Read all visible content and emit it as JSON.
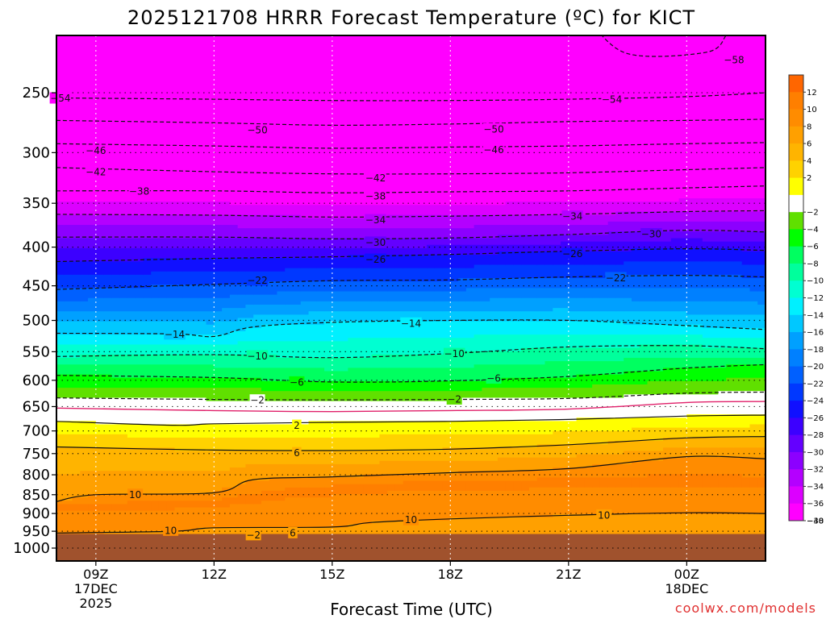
{
  "title": "2025121708 HRRR Forecast Temperature (ºC) for KICT",
  "credit": "coolwx.com/models",
  "chart_data": {
    "type": "heatmap",
    "title": "2025121708 HRRR Forecast Temperature (ºC) for KICT",
    "xlabel": "Forecast Time (UTC)",
    "ylabel": "",
    "xlim": [
      8,
      26
    ],
    "ylim_hpa": [
      210,
      1040
    ],
    "y_log_scale": true,
    "grid": true,
    "x_ticks": [
      {
        "hour": 9,
        "label": "09Z",
        "line2": "17DEC",
        "line3": "2025"
      },
      {
        "hour": 12,
        "label": "12Z"
      },
      {
        "hour": 15,
        "label": "15Z"
      },
      {
        "hour": 18,
        "label": "18Z"
      },
      {
        "hour": 21,
        "label": "21Z"
      },
      {
        "hour": 24,
        "label": "00Z",
        "line2": "18DEC"
      }
    ],
    "y_ticks": [
      250,
      300,
      350,
      400,
      450,
      500,
      550,
      600,
      650,
      700,
      750,
      800,
      850,
      900,
      950,
      1000
    ],
    "surface_pressure_hpa": 958,
    "colorbar": {
      "ticks": [
        12,
        10,
        8,
        6,
        4,
        2,
        -2,
        -4,
        -6,
        -8,
        -10,
        -12,
        -14,
        -16,
        -18,
        -20,
        -22,
        -24,
        -26,
        -28,
        -30,
        -32,
        -34,
        -36,
        -38,
        -40
      ],
      "colors": [
        "#ff6600",
        "#ff7f00",
        "#ff8c00",
        "#ffa000",
        "#ffb400",
        "#ffd200",
        "#ffff00",
        "#ffffff",
        "#60e000",
        "#00ff00",
        "#00ff60",
        "#00ff9c",
        "#00ffd2",
        "#00f0ff",
        "#00c8ff",
        "#00a0ff",
        "#0080ff",
        "#0060ff",
        "#0038ff",
        "#1010ff",
        "#3c00ff",
        "#6400ff",
        "#8c00ff",
        "#b400ff",
        "#dc00ff",
        "#ff00ff"
      ]
    },
    "isotherms": [
      {
        "t": -58,
        "p": [
          [
            21.5,
            200
          ],
          [
            22.5,
            222
          ],
          [
            24.5,
            221
          ],
          [
            25.0,
            210
          ]
        ],
        "label_at": [
          25.2,
          226
        ]
      },
      {
        "t": -54,
        "p": [
          [
            8,
            254
          ],
          [
            12,
            255
          ],
          [
            15,
            256
          ],
          [
            18,
            256
          ],
          [
            21,
            255
          ],
          [
            24,
            253
          ],
          [
            26,
            250
          ]
        ],
        "labels": [
          [
            8.1,
            254
          ],
          [
            22.1,
            255
          ]
        ]
      },
      {
        "t": -50,
        "p": [
          [
            8,
            272
          ],
          [
            12,
            274
          ],
          [
            15,
            276
          ],
          [
            18,
            275
          ],
          [
            21,
            273
          ],
          [
            24,
            272
          ],
          [
            26,
            271
          ]
        ],
        "labels": [
          [
            13.1,
            280
          ],
          [
            19.1,
            279
          ]
        ]
      },
      {
        "t": -46,
        "p": [
          [
            8,
            292
          ],
          [
            12,
            294
          ],
          [
            15,
            296
          ],
          [
            18,
            295
          ],
          [
            21,
            294
          ],
          [
            24,
            292
          ],
          [
            26,
            291
          ]
        ],
        "labels": [
          [
            9.0,
            298
          ],
          [
            19.1,
            297
          ]
        ]
      },
      {
        "t": -42,
        "p": [
          [
            8,
            314
          ],
          [
            12,
            318
          ],
          [
            15,
            320
          ],
          [
            18,
            320
          ],
          [
            21,
            319
          ],
          [
            24,
            316
          ],
          [
            26,
            314
          ]
        ],
        "labels": [
          [
            9.0,
            318
          ],
          [
            16.1,
            324
          ]
        ]
      },
      {
        "t": -38,
        "p": [
          [
            8,
            337
          ],
          [
            12,
            337
          ],
          [
            15,
            339
          ],
          [
            18,
            338
          ],
          [
            21,
            337
          ],
          [
            24,
            334
          ],
          [
            26,
            332
          ]
        ],
        "labels": [
          [
            10.1,
            337
          ],
          [
            16.1,
            342
          ]
        ]
      },
      {
        "t": -34,
        "p": [
          [
            8,
            362
          ],
          [
            12,
            363
          ],
          [
            15,
            365
          ],
          [
            18,
            364
          ],
          [
            21,
            362
          ],
          [
            24,
            359
          ],
          [
            26,
            358
          ]
        ],
        "labels": [
          [
            16.1,
            368
          ],
          [
            21.1,
            364
          ]
        ]
      },
      {
        "t": -30,
        "p": [
          [
            8,
            388
          ],
          [
            12,
            388
          ],
          [
            15,
            390
          ],
          [
            18,
            389
          ],
          [
            21,
            385
          ],
          [
            24,
            380
          ],
          [
            26,
            382
          ]
        ],
        "labels": [
          [
            16.1,
            394
          ],
          [
            23.1,
            384
          ]
        ]
      },
      {
        "t": -26,
        "p": [
          [
            8,
            418
          ],
          [
            12,
            414
          ],
          [
            15,
            412
          ],
          [
            18,
            409
          ],
          [
            21,
            405
          ],
          [
            24,
            402
          ],
          [
            26,
            404
          ]
        ],
        "labels": [
          [
            16.1,
            415
          ],
          [
            21.1,
            408
          ]
        ]
      },
      {
        "t": -22,
        "p": [
          [
            8,
            455
          ],
          [
            12,
            448
          ],
          [
            15,
            443
          ],
          [
            18,
            442
          ],
          [
            21,
            438
          ],
          [
            24,
            436
          ],
          [
            26,
            438
          ]
        ],
        "labels": [
          [
            13.1,
            442
          ],
          [
            22.2,
            439
          ]
        ]
      },
      {
        "t": -14,
        "p": [
          [
            8,
            520
          ],
          [
            11,
            521
          ],
          [
            12,
            525
          ],
          [
            13,
            510
          ],
          [
            15,
            503
          ],
          [
            18,
            500
          ],
          [
            21,
            500
          ],
          [
            24,
            508
          ],
          [
            26,
            514
          ]
        ],
        "labels": [
          [
            11.0,
            521
          ],
          [
            17.0,
            504
          ]
        ]
      },
      {
        "t": -10,
        "p": [
          [
            8,
            558
          ],
          [
            12,
            555
          ],
          [
            15,
            560
          ],
          [
            18,
            553
          ],
          [
            21,
            542
          ],
          [
            24,
            540
          ],
          [
            26,
            545
          ]
        ],
        "labels": [
          [
            13.1,
            557
          ],
          [
            18.1,
            553
          ]
        ]
      },
      {
        "t": -6,
        "p": [
          [
            8,
            591
          ],
          [
            12,
            595
          ],
          [
            15,
            603
          ],
          [
            18,
            601
          ],
          [
            21,
            593
          ],
          [
            24,
            578
          ],
          [
            26,
            572
          ]
        ],
        "labels": [
          [
            14.1,
            603
          ],
          [
            19.1,
            596
          ]
        ]
      },
      {
        "t": -2,
        "p": [
          [
            8,
            633
          ],
          [
            12,
            636
          ],
          [
            15,
            637
          ],
          [
            18,
            636
          ],
          [
            21,
            634
          ],
          [
            24,
            624
          ],
          [
            26,
            622
          ]
        ],
        "labels": [
          [
            13.1,
            637
          ],
          [
            18.1,
            635
          ]
        ]
      },
      {
        "t": 2,
        "p": [
          [
            8,
            680
          ],
          [
            11,
            688
          ],
          [
            12,
            685
          ],
          [
            15,
            682
          ],
          [
            18,
            680
          ],
          [
            21,
            676
          ],
          [
            24,
            669
          ],
          [
            26,
            667
          ]
        ],
        "labels": [
          [
            14.1,
            688
          ]
        ]
      },
      {
        "t": 6,
        "p": [
          [
            8,
            735
          ],
          [
            12,
            742
          ],
          [
            15,
            743
          ],
          [
            18,
            740
          ],
          [
            21,
            730
          ],
          [
            24,
            715
          ],
          [
            26,
            712
          ]
        ],
        "labels": [
          [
            14.1,
            748
          ]
        ]
      },
      {
        "t": 10,
        "p": [
          [
            8,
            868
          ],
          [
            9,
            850
          ],
          [
            12,
            845
          ],
          [
            13,
            812
          ],
          [
            15,
            805
          ],
          [
            18,
            795
          ],
          [
            21,
            785
          ],
          [
            24,
            757
          ],
          [
            26,
            762
          ]
        ],
        "labels": [
          [
            10.0,
            849
          ]
        ]
      },
      {
        "t": 10,
        "p": [
          [
            8,
            955
          ],
          [
            11,
            950
          ],
          [
            12,
            940
          ],
          [
            15,
            938
          ],
          [
            16,
            925
          ],
          [
            18,
            915
          ],
          [
            21,
            905
          ],
          [
            24,
            898
          ],
          [
            26,
            900
          ]
        ],
        "labels": [
          [
            10.9,
            947
          ],
          [
            17.0,
            917
          ],
          [
            21.9,
            904
          ]
        ]
      }
    ],
    "cold_isotherm_label": {
      "t": -2,
      "x": 13.0,
      "p": 960
    },
    "extra_labels": [
      {
        "t": 6,
        "x": 14.0,
        "p": 954
      }
    ],
    "magenta_isotherm": {
      "t": 0,
      "p": [
        [
          8,
          653
        ],
        [
          12,
          658
        ],
        [
          15,
          660
        ],
        [
          18,
          658
        ],
        [
          21,
          655
        ],
        [
          24,
          642
        ],
        [
          26,
          640
        ]
      ]
    }
  }
}
